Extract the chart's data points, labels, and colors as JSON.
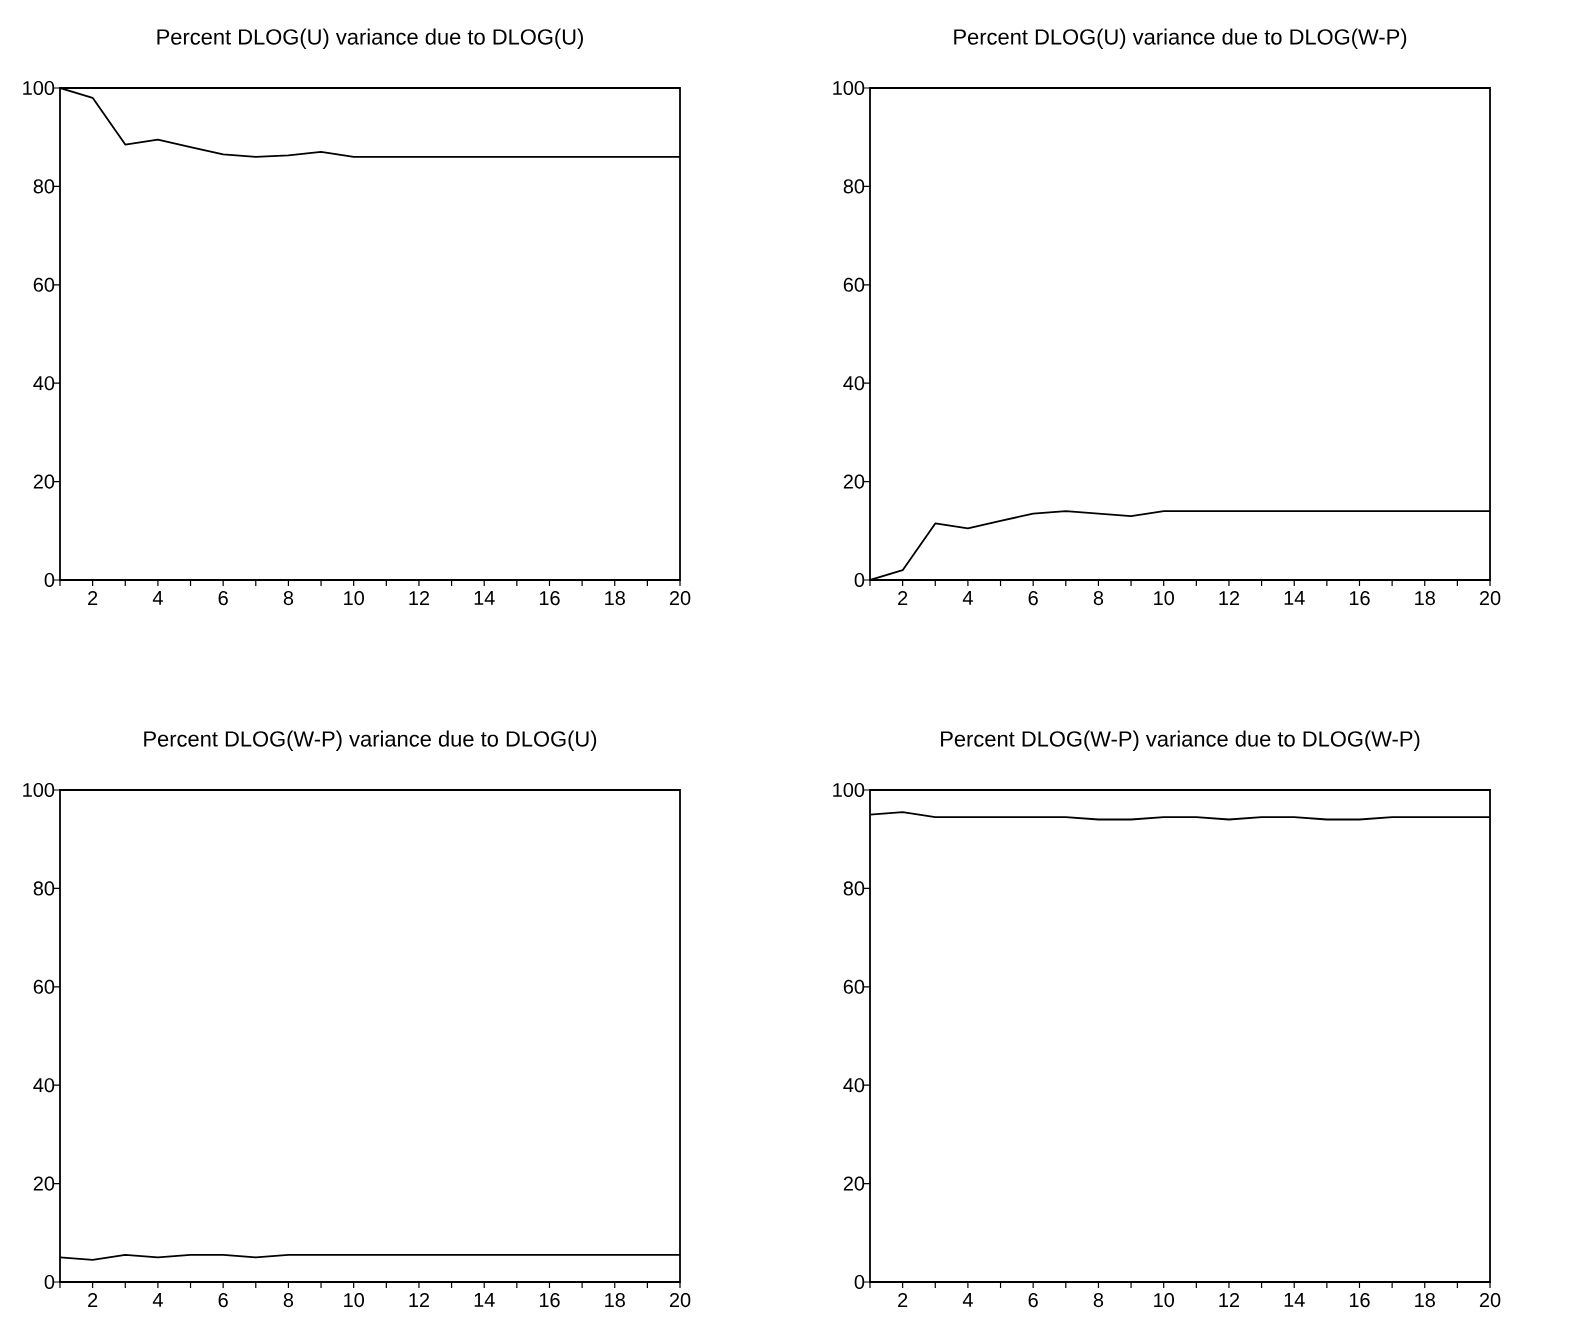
{
  "chart_data": [
    {
      "type": "line",
      "title": "Percent DLOG(U) variance due to DLOG(U)",
      "color": "#000000",
      "x": [
        1,
        2,
        3,
        4,
        5,
        6,
        7,
        8,
        9,
        10,
        11,
        12,
        13,
        14,
        15,
        16,
        17,
        18,
        19,
        20
      ],
      "values": [
        100,
        98,
        88.5,
        89.5,
        88,
        86.5,
        86,
        86.3,
        87,
        86,
        86,
        86,
        86,
        86,
        86,
        86,
        86,
        86,
        86,
        86
      ],
      "xlim": [
        1,
        20
      ],
      "ylim": [
        0,
        100
      ],
      "yticks": [
        0,
        20,
        40,
        60,
        80,
        100
      ],
      "xticks": [
        {
          "value": 1,
          "label": null
        },
        2,
        {
          "value": 3,
          "label": null
        },
        4,
        {
          "value": 5,
          "label": null
        },
        6,
        {
          "value": 7,
          "label": null
        },
        8,
        {
          "value": 9,
          "label": null
        },
        10,
        {
          "value": 11,
          "label": null
        },
        12,
        {
          "value": 13,
          "label": null
        },
        14,
        {
          "value": 15,
          "label": null
        },
        16,
        {
          "value": 17,
          "label": null
        },
        18,
        {
          "value": 19,
          "label": null
        },
        20
      ]
    },
    {
      "type": "line",
      "title": "Percent DLOG(U) variance due to DLOG(W-P)",
      "color": "#000000",
      "x": [
        1,
        2,
        3,
        4,
        5,
        6,
        7,
        8,
        9,
        10,
        11,
        12,
        13,
        14,
        15,
        16,
        17,
        18,
        19,
        20
      ],
      "values": [
        0,
        2,
        11.5,
        10.5,
        12,
        13.5,
        14,
        13.5,
        13,
        14,
        14,
        14,
        14,
        14,
        14,
        14,
        14,
        14,
        14,
        14
      ],
      "xlim": [
        1,
        20
      ],
      "ylim": [
        0,
        100
      ],
      "yticks": [
        0,
        20,
        40,
        60,
        80,
        100
      ],
      "xticks": [
        {
          "value": 1,
          "label": null
        },
        2,
        {
          "value": 3,
          "label": null
        },
        4,
        {
          "value": 5,
          "label": null
        },
        6,
        {
          "value": 7,
          "label": null
        },
        8,
        {
          "value": 9,
          "label": null
        },
        10,
        {
          "value": 11,
          "label": null
        },
        12,
        {
          "value": 13,
          "label": null
        },
        14,
        {
          "value": 15,
          "label": null
        },
        16,
        {
          "value": 17,
          "label": null
        },
        18,
        {
          "value": 19,
          "label": null
        },
        20
      ]
    },
    {
      "type": "line",
      "title": "Percent DLOG(W-P) variance due to DLOG(U)",
      "color": "#000000",
      "x": [
        1,
        2,
        3,
        4,
        5,
        6,
        7,
        8,
        9,
        10,
        11,
        12,
        13,
        14,
        15,
        16,
        17,
        18,
        19,
        20
      ],
      "values": [
        5,
        4.5,
        5.5,
        5,
        5.5,
        5.5,
        5,
        5.5,
        5.5,
        5.5,
        5.5,
        5.5,
        5.5,
        5.5,
        5.5,
        5.5,
        5.5,
        5.5,
        5.5,
        5.5
      ],
      "xlim": [
        1,
        20
      ],
      "ylim": [
        0,
        100
      ],
      "yticks": [
        0,
        20,
        40,
        60,
        80,
        100
      ],
      "xticks": [
        {
          "value": 1,
          "label": null
        },
        2,
        {
          "value": 3,
          "label": null
        },
        4,
        {
          "value": 5,
          "label": null
        },
        6,
        {
          "value": 7,
          "label": null
        },
        8,
        {
          "value": 9,
          "label": null
        },
        10,
        {
          "value": 11,
          "label": null
        },
        12,
        {
          "value": 13,
          "label": null
        },
        14,
        {
          "value": 15,
          "label": null
        },
        16,
        {
          "value": 17,
          "label": null
        },
        18,
        {
          "value": 19,
          "label": null
        },
        20
      ]
    },
    {
      "type": "line",
      "title": "Percent DLOG(W-P) variance due to DLOG(W-P)",
      "color": "#000000",
      "x": [
        1,
        2,
        3,
        4,
        5,
        6,
        7,
        8,
        9,
        10,
        11,
        12,
        13,
        14,
        15,
        16,
        17,
        18,
        19,
        20
      ],
      "values": [
        95,
        95.5,
        94.5,
        94.5,
        94.5,
        94.5,
        94.5,
        94,
        94,
        94.5,
        94.5,
        94,
        94.5,
        94.5,
        94,
        94,
        94.5,
        94.5,
        94.5,
        94.5
      ],
      "xlim": [
        1,
        20
      ],
      "ylim": [
        0,
        100
      ],
      "yticks": [
        0,
        20,
        40,
        60,
        80,
        100
      ],
      "xticks": [
        {
          "value": 1,
          "label": null
        },
        2,
        {
          "value": 3,
          "label": null
        },
        4,
        {
          "value": 5,
          "label": null
        },
        6,
        {
          "value": 7,
          "label": null
        },
        8,
        {
          "value": 9,
          "label": null
        },
        10,
        {
          "value": 11,
          "label": null
        },
        12,
        {
          "value": 13,
          "label": null
        },
        14,
        {
          "value": 15,
          "label": null
        },
        16,
        {
          "value": 17,
          "label": null
        },
        18,
        {
          "value": 19,
          "label": null
        },
        20
      ]
    }
  ]
}
